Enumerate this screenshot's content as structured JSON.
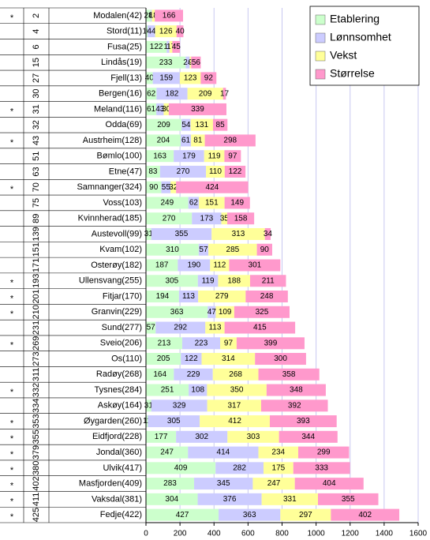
{
  "chart_data": {
    "type": "bar",
    "orientation": "horizontal",
    "stacked": true,
    "categories": [
      "Modalen(42)",
      "Stord(11)",
      "Fusa(25)",
      "Lindås(19)",
      "Fjell(13)",
      "Bergen(16)",
      "Meland(116)",
      "Odda(69)",
      "Austrheim(128)",
      "Bømlo(100)",
      "Etne(47)",
      "Samnanger(324)",
      "Voss(103)",
      "Kvinnherad(185)",
      "Austevoll(99)",
      "Kvam(102)",
      "Osterøy(182)",
      "Ullensvang(255)",
      "Fitjar(170)",
      "Granvin(229)",
      "Sund(277)",
      "Sveio(206)",
      "Os(110)",
      "Radøy(268)",
      "Tysnes(284)",
      "Askøy(164)",
      "Øygarden(260)",
      "Eidfjord(228)",
      "Jondal(360)",
      "Ulvik(417)",
      "Masfjorden(409)",
      "Vaksdal(381)",
      "Fedje(422)"
    ],
    "ranks": [
      2,
      4,
      6,
      15,
      27,
      30,
      31,
      32,
      43,
      51,
      63,
      70,
      75,
      89,
      139,
      151,
      171,
      193,
      201,
      210,
      231,
      269,
      273,
      311,
      332,
      334,
      353,
      355,
      379,
      380,
      402,
      411,
      425
    ],
    "stars": [
      "*",
      null,
      null,
      null,
      null,
      null,
      "*",
      null,
      "*",
      null,
      null,
      "*",
      null,
      null,
      null,
      null,
      null,
      "*",
      "*",
      "*",
      null,
      "*",
      null,
      null,
      "*",
      null,
      "*",
      "*",
      "*",
      "*",
      "*",
      "*",
      "*"
    ],
    "series": [
      {
        "name": "Etablering",
        "color": "#ccffcc",
        "values": [
          28,
          10,
          122,
          233,
          40,
          62,
          61,
          209,
          204,
          163,
          83,
          90,
          249,
          270,
          31,
          310,
          187,
          305,
          194,
          363,
          57,
          213,
          205,
          164,
          251,
          31,
          11,
          177,
          247,
          409,
          283,
          304,
          427
        ]
      },
      {
        "name": "Lønnsomhet",
        "color": "#ccccff",
        "values": [
          6,
          44,
          16,
          24,
          159,
          182,
          43,
          54,
          61,
          179,
          270,
          55,
          62,
          173,
          355,
          57,
          190,
          119,
          113,
          47,
          292,
          223,
          122,
          229,
          108,
          329,
          305,
          302,
          414,
          282,
          345,
          376,
          363
        ]
      },
      {
        "name": "Vekst",
        "color": "#ffff99",
        "values": [
          18,
          126,
          17,
          9,
          123,
          209,
          30,
          131,
          81,
          119,
          110,
          32,
          151,
          35,
          313,
          285,
          112,
          188,
          279,
          109,
          113,
          97,
          314,
          268,
          350,
          317,
          412,
          303,
          234,
          175,
          247,
          331,
          297
        ]
      },
      {
        "name": "Størrelse",
        "color": "#ff99cc",
        "values": [
          166,
          40,
          45,
          56,
          92,
          17,
          339,
          85,
          298,
          97,
          122,
          424,
          149,
          158,
          34,
          90,
          301,
          211,
          248,
          325,
          415,
          399,
          300,
          358,
          348,
          392,
          393,
          344,
          299,
          333,
          404,
          355,
          402
        ]
      }
    ],
    "xlim": [
      0,
      1600
    ],
    "xticks": [
      0,
      200,
      400,
      600,
      800,
      1000,
      1200,
      1400,
      1600
    ],
    "grid": true,
    "legend": "upper right"
  }
}
